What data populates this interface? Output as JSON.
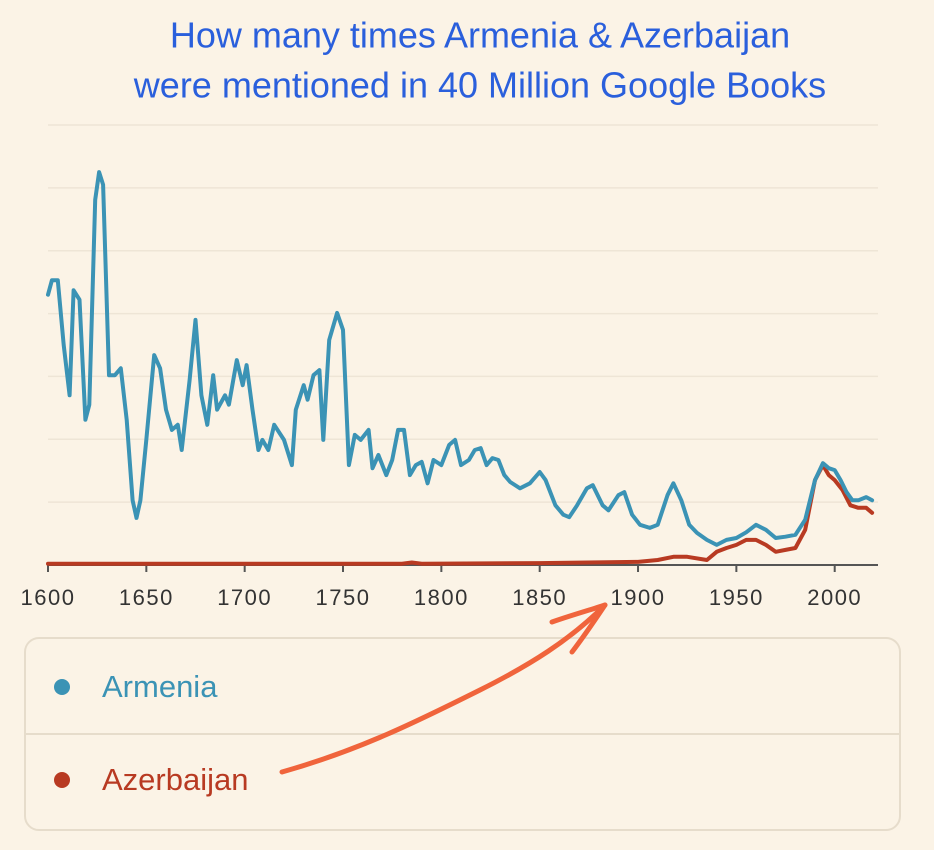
{
  "chart_data": {
    "type": "line",
    "title": [
      "How many times Armenia & Azerbaijan",
      "were mentioned in 40 Million Google Books"
    ],
    "xlim": [
      1600,
      2021
    ],
    "xticks": [
      1600,
      1650,
      1700,
      1750,
      1800,
      1850,
      1900,
      1950,
      2000
    ],
    "ylim": [
      0,
      7
    ],
    "yticks": [
      0,
      1,
      2,
      3,
      4,
      5,
      6,
      7
    ],
    "ytick_labels": false,
    "grid": true,
    "series": [
      {
        "name": "Armenia",
        "color": "#3b93b5",
        "x": [
          1600,
          1602,
          1605,
          1608,
          1611,
          1613,
          1616,
          1619,
          1621,
          1624,
          1626,
          1628,
          1631,
          1634,
          1637,
          1640,
          1643,
          1645,
          1647,
          1650,
          1654,
          1657,
          1660,
          1663,
          1666,
          1668,
          1672,
          1675,
          1678,
          1681,
          1684,
          1686,
          1690,
          1692,
          1696,
          1699,
          1701,
          1704,
          1707,
          1709,
          1712,
          1715,
          1720,
          1724,
          1726,
          1730,
          1732,
          1735,
          1738,
          1740,
          1743,
          1747,
          1750,
          1753,
          1756,
          1759,
          1763,
          1765,
          1768,
          1772,
          1775,
          1778,
          1781,
          1784,
          1787,
          1790,
          1793,
          1796,
          1800,
          1804,
          1807,
          1810,
          1814,
          1817,
          1820,
          1823,
          1826,
          1829,
          1832,
          1835,
          1840,
          1845,
          1850,
          1853,
          1858,
          1862,
          1865,
          1869,
          1874,
          1877,
          1882,
          1885,
          1890,
          1893,
          1897,
          1901,
          1906,
          1910,
          1915,
          1918,
          1922,
          1926,
          1930,
          1935,
          1940,
          1945,
          1950,
          1955,
          1960,
          1965,
          1970,
          1975,
          1980,
          1985,
          1990,
          1994,
          1997,
          2000,
          2003,
          2006,
          2009,
          2012,
          2016,
          2019
        ],
        "values": [
          4.3,
          4.53,
          4.53,
          3.5,
          2.7,
          4.37,
          4.22,
          2.31,
          2.55,
          5.81,
          6.25,
          6.05,
          3.02,
          3.02,
          3.13,
          2.31,
          1.03,
          0.75,
          1.03,
          1.99,
          3.34,
          3.13,
          2.47,
          2.15,
          2.23,
          1.83,
          2.94,
          3.9,
          2.7,
          2.23,
          3.02,
          2.47,
          2.7,
          2.55,
          3.26,
          2.86,
          3.18,
          2.47,
          1.83,
          1.99,
          1.83,
          2.23,
          1.99,
          1.59,
          2.47,
          2.86,
          2.63,
          3.02,
          3.1,
          1.99,
          3.58,
          4.01,
          3.74,
          1.59,
          2.07,
          1.99,
          2.15,
          1.54,
          1.75,
          1.43,
          1.67,
          2.15,
          2.15,
          1.43,
          1.59,
          1.64,
          1.3,
          1.67,
          1.59,
          1.91,
          1.99,
          1.59,
          1.67,
          1.83,
          1.86,
          1.59,
          1.7,
          1.67,
          1.43,
          1.32,
          1.22,
          1.3,
          1.48,
          1.35,
          0.95,
          0.8,
          0.76,
          0.95,
          1.22,
          1.27,
          0.95,
          0.87,
          1.11,
          1.16,
          0.8,
          0.64,
          0.59,
          0.64,
          1.11,
          1.3,
          1.03,
          0.64,
          0.51,
          0.4,
          0.32,
          0.4,
          0.43,
          0.52,
          0.64,
          0.56,
          0.43,
          0.45,
          0.48,
          0.72,
          1.35,
          1.62,
          1.54,
          1.51,
          1.35,
          1.16,
          1.03,
          1.03,
          1.08,
          1.03
        ]
      },
      {
        "name": "Azerbaijan",
        "color": "#b83a22",
        "x": [
          1600,
          1700,
          1780,
          1785,
          1790,
          1850,
          1900,
          1910,
          1918,
          1925,
          1935,
          1940,
          1945,
          1950,
          1955,
          1960,
          1965,
          1970,
          1975,
          1980,
          1985,
          1990,
          1994,
          1997,
          2000,
          2004,
          2008,
          2012,
          2016,
          2019
        ],
        "values": [
          0.02,
          0.02,
          0.02,
          0.04,
          0.02,
          0.03,
          0.05,
          0.08,
          0.13,
          0.13,
          0.08,
          0.21,
          0.27,
          0.32,
          0.4,
          0.4,
          0.32,
          0.21,
          0.24,
          0.27,
          0.56,
          1.35,
          1.59,
          1.43,
          1.35,
          1.19,
          0.95,
          0.91,
          0.91,
          0.83
        ]
      }
    ]
  }
}
